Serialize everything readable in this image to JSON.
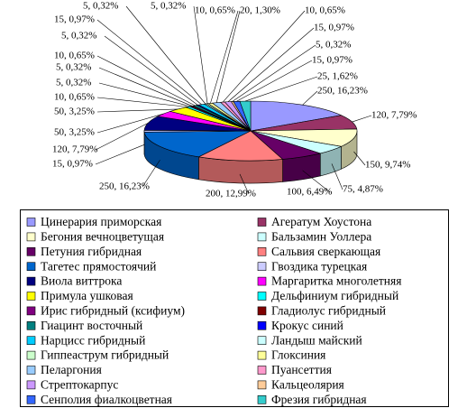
{
  "chart_data": {
    "type": "pie",
    "categories": [
      "Цинерария приморская",
      "Агератум Хоустона",
      "Бегония вечноцветущая",
      "Бальзамин Уоллера",
      "Петуния гибридная",
      "Сальвия сверкающая",
      "Тагетес прямостоячий",
      "Гвоздика турецкая",
      "Виола виттрока",
      "Маргаритка многолетняя",
      "Примула ушковая",
      "Дельфиниум гибридный",
      "Ирис гибридный (ксифиум)",
      "Гладиолус гибридный",
      "Гиацинт восточный",
      "Крокус синий",
      "Нарцисс гибридный",
      "Ландыш майский",
      "Гиппеаструм гибридный",
      "Глоксиния",
      "Пеларгония",
      "Пуансеттия",
      "Стрептокарпус",
      "Кальцеолярия",
      "Сенполия фиалкоцветная",
      "Фрезия гибридная"
    ],
    "values": [
      250,
      120,
      150,
      75,
      100,
      200,
      250,
      15,
      120,
      50,
      50,
      10,
      5,
      5,
      10,
      5,
      15,
      5,
      5,
      10,
      20,
      10,
      15,
      5,
      15,
      25
    ],
    "value_labels": [
      "250, 16,23%",
      "120, 7,79%",
      "150, 9,74%",
      "75, 4,87%",
      "100, 6,49%",
      "200, 12,99%",
      "250, 16,23%",
      "15, 0,97%",
      "120, 7,79%",
      "50, 3,25%",
      "50, 3,25%",
      "10, 0,65%",
      "5, 0,32%",
      "5, 0,32%",
      "10, 0,65%",
      "5, 0,32%",
      "15, 0,97%",
      "5, 0,32%",
      "5, 0,32%",
      "10, 0,65%",
      "20, 1,30%",
      "10, 0,65%",
      "15, 0,97%",
      "5, 0,32%",
      "15, 0,97%",
      "25, 1,62%"
    ],
    "colors": [
      "#9999ff",
      "#993366",
      "#ffffcc",
      "#ccffff",
      "#660066",
      "#ff8080",
      "#0066cc",
      "#ccccff",
      "#000080",
      "#ff00ff",
      "#ffff00",
      "#00ffff",
      "#800080",
      "#800000",
      "#008080",
      "#0000ff",
      "#00ccff",
      "#ccffff",
      "#ccffcc",
      "#ffff99",
      "#99ccff",
      "#ff99cc",
      "#cc99ff",
      "#ffcc99",
      "#3366ff",
      "#33cccc"
    ]
  }
}
